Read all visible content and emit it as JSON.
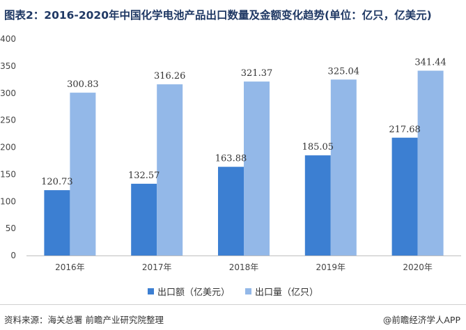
{
  "chart_data": {
    "type": "bar",
    "title": "图表2：2016-2020年中国化学电池产品出口数量及金额变化趋势(单位：亿只，亿美元)",
    "categories": [
      "2016年",
      "2017年",
      "2018年",
      "2019年",
      "2020年"
    ],
    "series": [
      {
        "name": "出口额（亿美元）",
        "values": [
          120.73,
          132.57,
          163.88,
          185.05,
          217.68
        ],
        "color": "#3c7fd2"
      },
      {
        "name": "出口量（亿只）",
        "values": [
          300.83,
          316.26,
          321.37,
          325.04,
          341.44
        ],
        "color": "#93b8e8"
      }
    ],
    "ylim": [
      0,
      400
    ],
    "yticks": [
      0,
      50,
      100,
      150,
      200,
      250,
      300,
      350,
      400
    ],
    "grid": false,
    "legend_position": "bottom"
  },
  "footer": {
    "source": "资料来源：海关总署 前瞻产业研究院整理",
    "brand": "@前瞻经济学人APP"
  }
}
